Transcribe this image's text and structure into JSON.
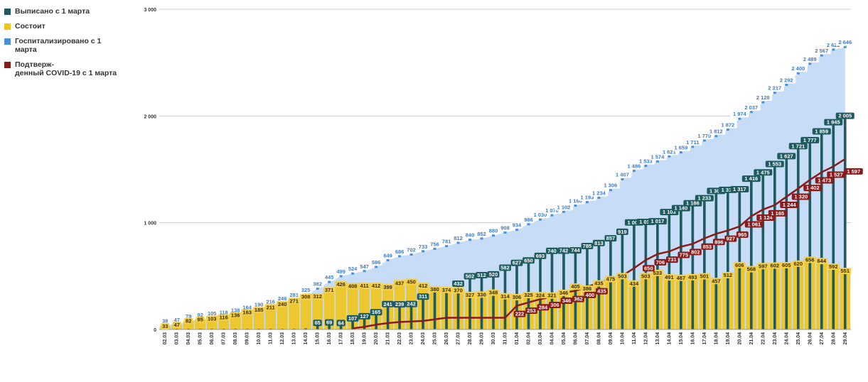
{
  "chart_data": {
    "type": "bar",
    "title": "",
    "xlabel": "",
    "ylabel": "",
    "ylim": [
      0,
      3000
    ],
    "yticks": [
      0,
      1000,
      2000,
      3000
    ],
    "ytick_labels": [
      "0",
      "1 000",
      "2 000",
      "3 000"
    ],
    "grid": true,
    "legend_position": "top-left",
    "categories": [
      "02.03",
      "03.03",
      "04.03",
      "05.03",
      "06.03",
      "07.03",
      "08.03",
      "09.03",
      "10.03",
      "11.03",
      "12.03",
      "13.03",
      "14.03",
      "15.03",
      "16.03",
      "17.03",
      "18.03",
      "19.03",
      "20.03",
      "21.03",
      "22.03",
      "23.03",
      "24.03",
      "25.03",
      "26.03",
      "27.03",
      "28.03",
      "29.03",
      "30.03",
      "31.03",
      "01.04",
      "02.04",
      "03.04",
      "04.04",
      "05.04",
      "06.04",
      "07.04",
      "08.04",
      "09.04",
      "10.04",
      "11.04",
      "12.04",
      "13.04",
      "14.04",
      "15.04",
      "16.04",
      "17.04",
      "18.04",
      "19.04",
      "20.04",
      "21.04",
      "22.04",
      "23.04",
      "24.04",
      "25.04",
      "26.04",
      "27.04",
      "28.04",
      "29.04"
    ],
    "series": [
      {
        "name": "Выписано с 1 марта",
        "type": "bar",
        "color": "#1e5a5e",
        "values": [
          5,
          6,
          6,
          6,
          6,
          6,
          6,
          6,
          6,
          6,
          6,
          6,
          10,
          65,
          69,
          64,
          107,
          127,
          165,
          241,
          239,
          242,
          311,
          380,
          374,
          432,
          502,
          512,
          520,
          582,
          627,
          650,
          693,
          740,
          742,
          744,
          785,
          813,
          857,
          919,
          1006,
          1011,
          1017,
          1103,
          1140,
          1186,
          1233,
          1301,
          1311,
          1317,
          1416,
          1475,
          1553,
          1627,
          1721,
          1777,
          1859,
          1945,
          2005
        ],
        "labels": [
          "",
          "",
          "",
          "",
          "",
          "",
          "",
          "",
          "",
          "",
          "",
          "",
          "",
          "65",
          "69",
          "64",
          "107",
          "127",
          "165",
          "241",
          "239",
          "242",
          "311",
          "",
          "",
          "432",
          "502",
          "512",
          "520",
          "582",
          "627",
          "650",
          "693",
          "740",
          "742",
          "744",
          "785",
          "813",
          "857",
          "919",
          "1 006",
          "1 011",
          "1 017",
          "1 103",
          "1 140",
          "1 186",
          "1 233",
          "1 301",
          "1 311",
          "1 317",
          "1 416",
          "1 475",
          "1 553",
          "1 627",
          "1 721",
          "1 777",
          "1 859",
          "1 945",
          "2 005"
        ]
      },
      {
        "name": "Состоит",
        "type": "bar",
        "color": "#f0c419",
        "values": [
          33,
          47,
          82,
          95,
          103,
          116,
          136,
          163,
          185,
          211,
          240,
          271,
          308,
          312,
          371,
          426,
          408,
          411,
          412,
          399,
          437,
          450,
          412,
          380,
          374,
          370,
          327,
          330,
          348,
          314,
          306,
          325,
          324,
          321,
          346,
          405,
          386,
          435,
          475,
          503,
          434,
          503,
          533,
          491,
          487,
          493,
          501,
          457,
          512,
          606,
          568,
          597,
          602,
          605,
          620,
          656,
          644,
          592,
          551
        ],
        "labels": [
          "33",
          "47",
          "82",
          "95",
          "103",
          "116",
          "136",
          "163",
          "185",
          "211",
          "240",
          "271",
          "308",
          "312",
          "371",
          "426",
          "408",
          "411",
          "412",
          "399",
          "437",
          "450",
          "412",
          "380",
          "374",
          "370",
          "327",
          "330",
          "348",
          "314",
          "306",
          "325",
          "324",
          "321",
          "346",
          "405",
          "386",
          "435",
          "475",
          "503",
          "434",
          "503",
          "533",
          "491",
          "487",
          "493",
          "501",
          "457",
          "512",
          "606",
          "568",
          "597",
          "602",
          "605",
          "620",
          "656",
          "644",
          "592",
          "551"
        ]
      },
      {
        "name": "Госпитализировано с 1\nмарта",
        "type": "area",
        "color": "#4a90d9",
        "values": [
          38,
          47,
          79,
          92,
          105,
          118,
          138,
          164,
          190,
          216,
          246,
          281,
          325,
          382,
          445,
          499,
          524,
          547,
          586,
          649,
          686,
          702,
          733,
          756,
          781,
          812,
          840,
          852,
          880,
          908,
          934,
          986,
          1030,
          1070,
          1102,
          1160,
          1193,
          1234,
          1306,
          1407,
          1486,
          1533,
          1574,
          1621,
          1659,
          1711,
          1770,
          1812,
          1872,
          1974,
          2037,
          2128,
          2217,
          2292,
          2400,
          2489,
          2567,
          2622,
          2646
        ],
        "labels": [
          "38",
          "47",
          "79",
          "92",
          "105",
          "118",
          "138",
          "164",
          "190",
          "216",
          "246",
          "281",
          "325",
          "382",
          "445",
          "499",
          "524",
          "547",
          "586",
          "649",
          "686",
          "702",
          "733",
          "756",
          "781",
          "812",
          "840",
          "852",
          "880",
          "908",
          "934",
          "986",
          "1 030",
          "1 070",
          "1 102",
          "1 160",
          "1 193",
          "1 234",
          "1 306",
          "1 407",
          "1 486",
          "1 533",
          "1 574",
          "1 621",
          "1 659",
          "1 711",
          "1 770",
          "1 812",
          "1 872",
          "1 974",
          "2 037",
          "2 128",
          "2 217",
          "2 292",
          "2 400",
          "2 489",
          "2 567",
          "2 622",
          "2 646"
        ]
      },
      {
        "name": "Подтверж-\nденный COVID-19 с 1 марта",
        "type": "line",
        "color": "#8b1a1a",
        "values": [
          null,
          null,
          null,
          null,
          null,
          null,
          null,
          null,
          null,
          null,
          null,
          null,
          null,
          null,
          null,
          null,
          10,
          25,
          45,
          60,
          70,
          75,
          80,
          95,
          110,
          110,
          110,
          110,
          110,
          110,
          222,
          253,
          284,
          306,
          346,
          362,
          400,
          435,
          475,
          503,
          574,
          650,
          706,
          731,
          775,
          802,
          853,
          896,
          927,
          965,
          1061,
          1124,
          1165,
          1244,
          1320,
          1402,
          1473,
          1527,
          1597
        ],
        "labels": [
          "",
          "",
          "",
          "",
          "",
          "",
          "",
          "",
          "",
          "",
          "",
          "",
          "",
          "",
          "",
          "",
          "",
          "",
          "",
          "",
          "",
          "",
          "",
          "",
          "",
          "",
          "",
          "",
          "",
          "",
          "222",
          "253",
          "284",
          "306",
          "346",
          "362",
          "400",
          "435",
          "",
          "",
          "",
          "650",
          "706",
          "731",
          "775",
          "802",
          "853",
          "896",
          "927",
          "965",
          "1 061",
          "1 124",
          "1 165",
          "1 244",
          "1 320",
          "1 402",
          "1 473",
          "1 527",
          "1 597"
        ]
      }
    ]
  }
}
